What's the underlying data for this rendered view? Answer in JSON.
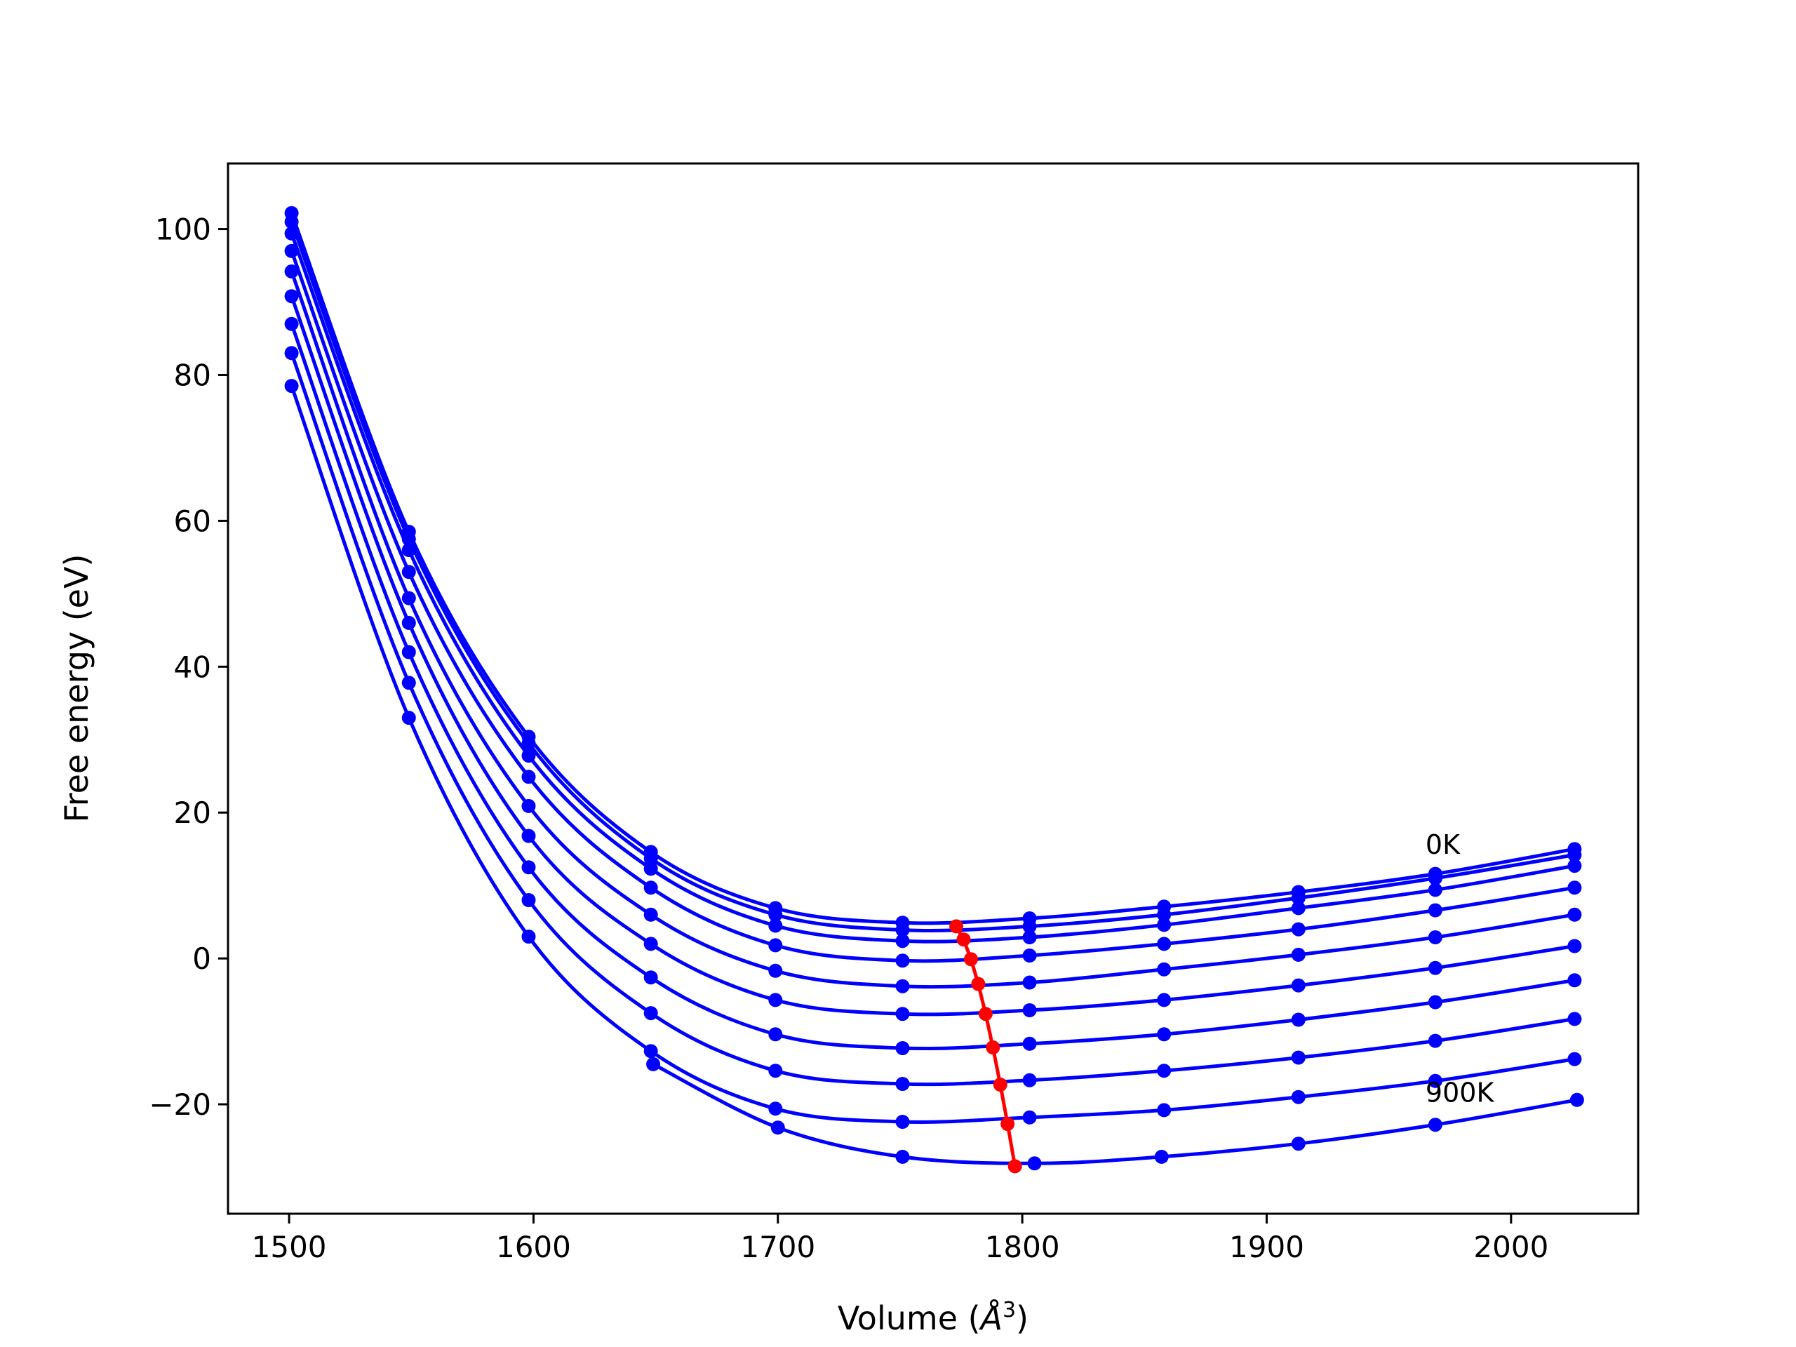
{
  "chart_data": {
    "type": "line",
    "title": "",
    "xlabel": "Volume (Å³)",
    "xlabel_parts": {
      "main": "Volume (",
      "unit": "Å",
      "exp": "3",
      "close": ")"
    },
    "ylabel": "Free energy (eV)",
    "xlim": [
      1475,
      2052
    ],
    "ylim": [
      -35,
      109
    ],
    "xticks": [
      1500,
      1600,
      1700,
      1800,
      1900,
      2000
    ],
    "yticks": [
      -20,
      0,
      20,
      40,
      60,
      80,
      100
    ],
    "ytick_labels": [
      "−20",
      "0",
      "20",
      "40",
      "60",
      "80",
      "100"
    ],
    "grid": false,
    "legend": "none",
    "colors": {
      "curves": "#0000ff",
      "minima": "#ff0000"
    },
    "x": [
      1501,
      1549,
      1598,
      1648,
      1699,
      1751,
      1803,
      1858,
      1913,
      1969,
      2026
    ],
    "series": [
      {
        "values": [
          102.2,
          58.5,
          30.4,
          14.6,
          6.9,
          4.9,
          5.5,
          7.1,
          9.1,
          11.6,
          15.0
        ]
      },
      {
        "values": [
          101.0,
          57.5,
          29.5,
          13.7,
          6.0,
          3.9,
          4.4,
          6.0,
          8.3,
          11.0,
          14.2
        ]
      },
      {
        "values": [
          99.4,
          56.0,
          27.8,
          12.3,
          4.5,
          2.4,
          2.9,
          4.6,
          6.9,
          9.4,
          12.7
        ]
      },
      {
        "values": [
          97.0,
          53.0,
          24.9,
          9.7,
          1.8,
          -0.3,
          0.4,
          2.0,
          4.0,
          6.6,
          9.7
        ]
      },
      {
        "values": [
          94.2,
          49.4,
          20.9,
          6.0,
          -1.7,
          -3.8,
          -3.3,
          -1.5,
          0.5,
          2.9,
          6.0
        ]
      },
      {
        "values": [
          90.8,
          46.0,
          16.8,
          2.0,
          -5.7,
          -7.6,
          -7.1,
          -5.7,
          -3.7,
          -1.3,
          1.7
        ]
      },
      {
        "values": [
          87.0,
          42.0,
          12.5,
          -2.6,
          -10.4,
          -12.3,
          -11.7,
          -10.4,
          -8.4,
          -6.0,
          -3.0
        ]
      },
      {
        "values": [
          83.0,
          37.8,
          8.0,
          -7.5,
          -15.4,
          -17.2,
          -16.7,
          -15.4,
          -13.6,
          -11.3,
          -8.3
        ]
      },
      {
        "values": [
          78.5,
          33.0,
          3.0,
          -12.7,
          -20.6,
          -22.4,
          -21.8,
          -20.8,
          -19.0,
          -16.8,
          -13.8
        ]
      }
    ],
    "last_curve": {
      "x": [
        1649,
        1700,
        1751,
        1805,
        1857,
        1913,
        1969,
        2027
      ],
      "values": [
        -14.5,
        -23.2,
        -27.2,
        -28.1,
        -27.2,
        -25.4,
        -22.8,
        -19.4
      ]
    },
    "minima_curve": {
      "x": [
        1773,
        1776,
        1779,
        1782,
        1785,
        1788,
        1791,
        1794,
        1797
      ],
      "values": [
        4.4,
        2.6,
        -0.1,
        -3.5,
        -7.6,
        -12.2,
        -17.3,
        -22.7,
        -28.5
      ]
    },
    "annotations": [
      {
        "text": "0K",
        "x": 1965,
        "y": 15.5
      },
      {
        "text": "900K",
        "x": 1965,
        "y": -18.5
      }
    ]
  }
}
